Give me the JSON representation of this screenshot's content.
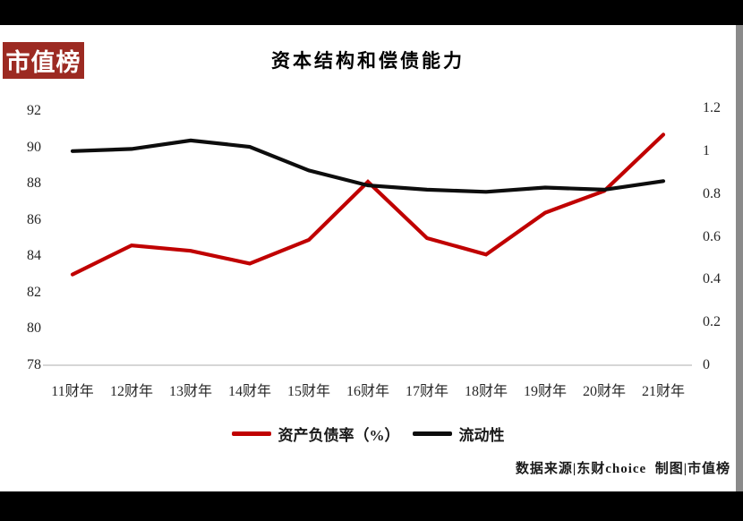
{
  "logo": {
    "text": "市值榜"
  },
  "header": {
    "title": "资本结构和偿债能力"
  },
  "footer": {
    "credit": "数据来源|东财choice  制图|市值榜"
  },
  "colors": {
    "logo_bg": "#9c2a22",
    "debt_ratio_line": "#c00000",
    "liquidity_line": "#0d0d0d",
    "axis_line": "#c9c9c9",
    "frame_bars": "#000000"
  },
  "chart_data": {
    "type": "line",
    "title": "资本结构和偿债能力",
    "categories": [
      "11财年",
      "12财年",
      "13财年",
      "14财年",
      "15财年",
      "16财年",
      "17财年",
      "18财年",
      "19财年",
      "20财年",
      "21财年"
    ],
    "series": [
      {
        "name": "资产负债率（%）",
        "axis": "left",
        "color": "#c00000",
        "values": [
          83.0,
          84.6,
          84.3,
          83.6,
          84.9,
          88.1,
          85.0,
          84.1,
          86.4,
          87.6,
          90.7
        ]
      },
      {
        "name": "流动性",
        "axis": "right",
        "color": "#0d0d0d",
        "values": [
          1.0,
          1.01,
          1.05,
          1.02,
          0.91,
          0.84,
          0.82,
          0.81,
          0.83,
          0.82,
          0.86
        ]
      }
    ],
    "left_axis": {
      "range": [
        78,
        92
      ],
      "ticks": [
        92,
        90,
        88,
        86,
        84,
        82,
        80,
        78
      ]
    },
    "right_axis": {
      "range": [
        0,
        1.2
      ],
      "tick_labels": [
        "1.2",
        "1",
        "0.8",
        "0.6",
        "0.4",
        "0.2",
        "0"
      ],
      "tick_values": [
        1.2,
        1.0,
        0.8,
        0.6,
        0.4,
        0.2,
        0
      ]
    },
    "grid": false,
    "legend_position": "bottom"
  }
}
